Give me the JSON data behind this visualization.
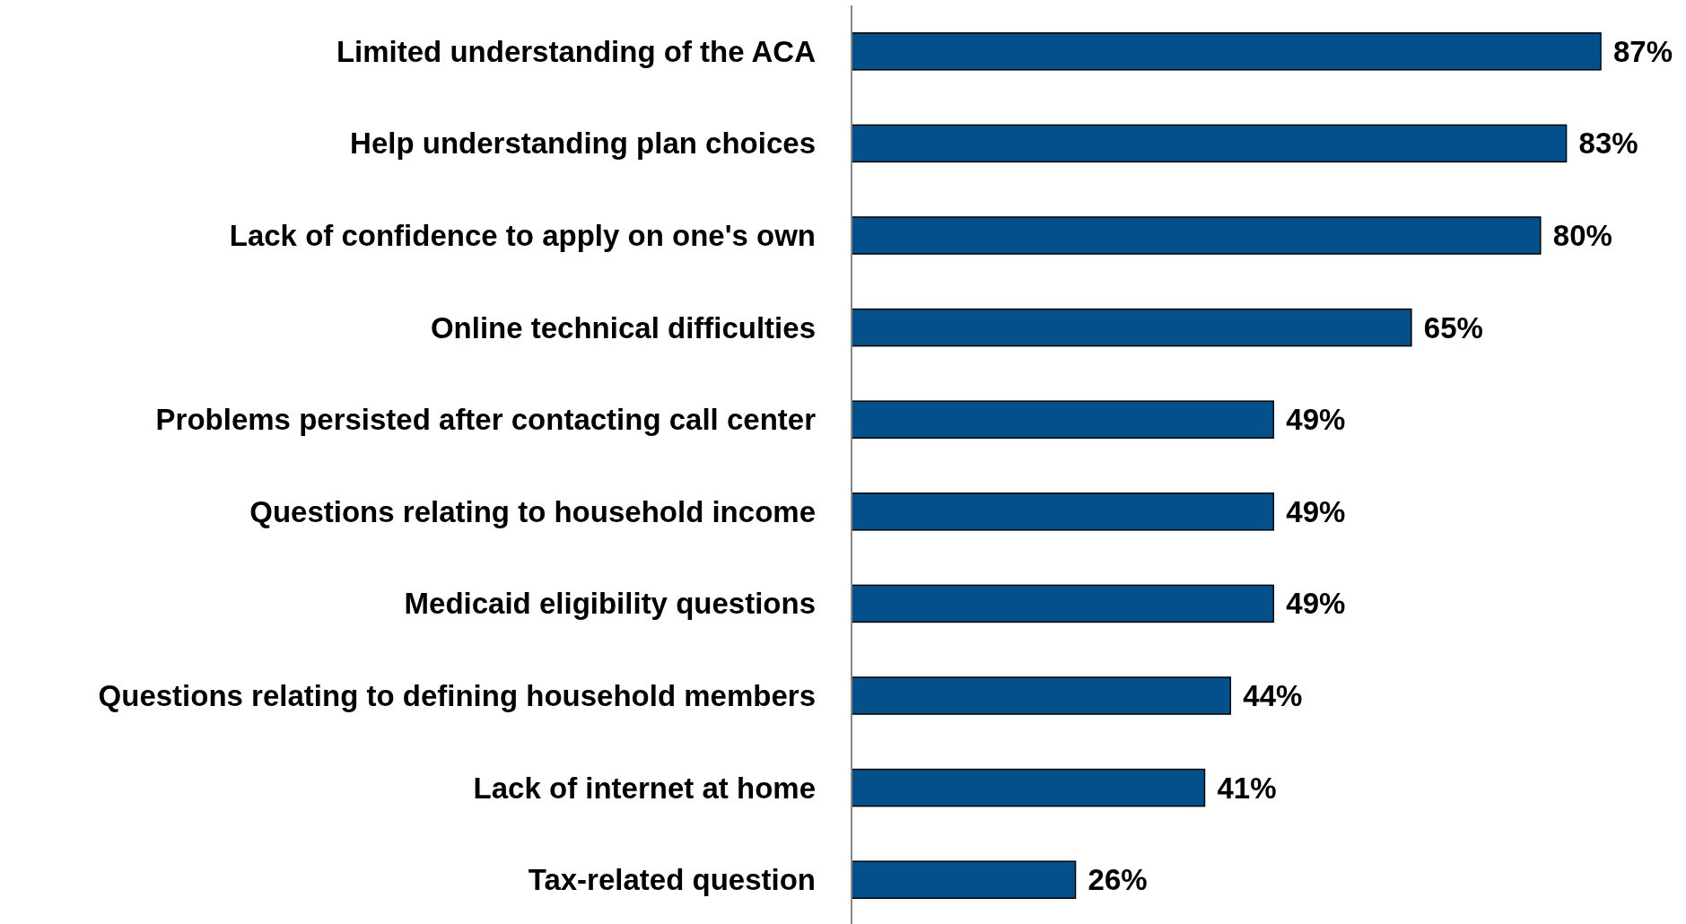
{
  "chart_data": {
    "type": "bar",
    "orientation": "horizontal",
    "categories": [
      "Limited understanding of the ACA",
      "Help understanding plan choices",
      "Lack of confidence to apply on one's own",
      "Online technical difficulties",
      "Problems persisted after contacting call center",
      "Questions relating to household income",
      "Medicaid eligibility questions",
      "Questions relating to defining household members",
      "Lack of internet at home",
      "Tax-related question"
    ],
    "values": [
      87,
      83,
      80,
      65,
      49,
      49,
      49,
      44,
      41,
      26
    ],
    "value_labels": [
      "87%",
      "83%",
      "80%",
      "65%",
      "49%",
      "49%",
      "49%",
      "44%",
      "41%",
      "26%"
    ],
    "color": "#03508a"
  }
}
